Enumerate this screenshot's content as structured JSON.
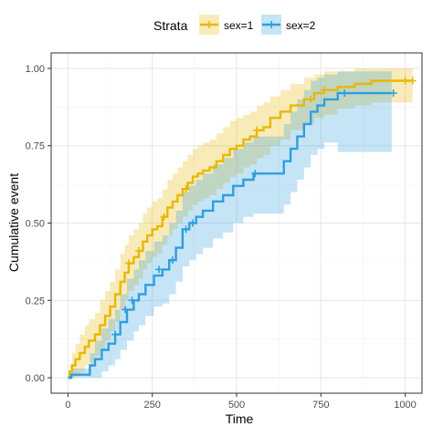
{
  "chart_data": {
    "type": "line",
    "subtype": "step",
    "xlabel": "Time",
    "ylabel": "Cumulative event",
    "xlim": [
      -50,
      1050
    ],
    "ylim": [
      -0.05,
      1.05
    ],
    "xticks": [
      0,
      250,
      500,
      750,
      1000
    ],
    "xtick_labels": [
      "0",
      "250",
      "500",
      "750",
      "1000"
    ],
    "yticks": [
      0,
      0.25,
      0.5,
      0.75,
      1
    ],
    "ytick_labels": [
      "0.00",
      "0.25",
      "0.50",
      "0.75",
      "1.00"
    ],
    "grid": true,
    "legend": {
      "title": "Strata",
      "position": "top",
      "entries": [
        "sex=1",
        "sex=2"
      ]
    },
    "series": [
      {
        "name": "sex=1",
        "color": "#E7B800",
        "x": [
          0,
          5,
          12,
          22,
          35,
          50,
          62,
          80,
          95,
          110,
          125,
          140,
          155,
          168,
          180,
          195,
          210,
          222,
          235,
          250,
          265,
          280,
          295,
          310,
          325,
          340,
          355,
          370,
          385,
          400,
          420,
          440,
          460,
          480,
          500,
          520,
          540,
          560,
          580,
          600,
          630,
          660,
          700,
          730,
          760,
          800,
          850,
          900,
          960,
          1000,
          1022
        ],
        "y": [
          0,
          0.02,
          0.04,
          0.06,
          0.08,
          0.1,
          0.12,
          0.14,
          0.17,
          0.2,
          0.23,
          0.27,
          0.31,
          0.34,
          0.37,
          0.39,
          0.41,
          0.44,
          0.46,
          0.48,
          0.49,
          0.52,
          0.55,
          0.57,
          0.59,
          0.61,
          0.63,
          0.65,
          0.66,
          0.67,
          0.68,
          0.7,
          0.72,
          0.74,
          0.75,
          0.77,
          0.78,
          0.8,
          0.81,
          0.84,
          0.86,
          0.88,
          0.9,
          0.92,
          0.93,
          0.94,
          0.95,
          0.96,
          0.96,
          0.96,
          0.96
        ],
        "lower": [
          0,
          0,
          0,
          0.01,
          0.02,
          0.04,
          0.05,
          0.07,
          0.09,
          0.12,
          0.15,
          0.18,
          0.22,
          0.25,
          0.28,
          0.3,
          0.32,
          0.35,
          0.37,
          0.39,
          0.4,
          0.43,
          0.46,
          0.48,
          0.5,
          0.52,
          0.54,
          0.56,
          0.57,
          0.58,
          0.59,
          0.61,
          0.63,
          0.65,
          0.66,
          0.68,
          0.69,
          0.71,
          0.72,
          0.75,
          0.77,
          0.8,
          0.82,
          0.84,
          0.85,
          0.87,
          0.88,
          0.89,
          0.89,
          0.89,
          0.89
        ],
        "upper": [
          0,
          0.04,
          0.08,
          0.11,
          0.14,
          0.17,
          0.19,
          0.21,
          0.25,
          0.28,
          0.31,
          0.35,
          0.4,
          0.43,
          0.46,
          0.48,
          0.5,
          0.53,
          0.55,
          0.57,
          0.58,
          0.61,
          0.64,
          0.66,
          0.68,
          0.7,
          0.72,
          0.74,
          0.75,
          0.76,
          0.77,
          0.79,
          0.81,
          0.83,
          0.84,
          0.85,
          0.86,
          0.88,
          0.89,
          0.91,
          0.93,
          0.95,
          0.97,
          0.98,
          0.99,
          0.99,
          1.0,
          1.0,
          1.0,
          1.0,
          1.0
        ],
        "censor_x": [
          180,
          210,
          285,
          350,
          560,
          720,
          760,
          1000,
          1022
        ],
        "censor_y": [
          0.37,
          0.41,
          0.52,
          0.61,
          0.8,
          0.9,
          0.93,
          0.96,
          0.96
        ]
      },
      {
        "name": "sex=2",
        "color": "#2E9FDF",
        "x": [
          0,
          10,
          65,
          80,
          100,
          120,
          140,
          155,
          175,
          195,
          210,
          230,
          255,
          280,
          300,
          320,
          340,
          360,
          380,
          400,
          430,
          460,
          490,
          520,
          550,
          580,
          620,
          640,
          660,
          680,
          700,
          720,
          740,
          760,
          800,
          850,
          900,
          960
        ],
        "y": [
          0,
          0.01,
          0.04,
          0.06,
          0.09,
          0.11,
          0.14,
          0.18,
          0.22,
          0.25,
          0.27,
          0.3,
          0.33,
          0.35,
          0.38,
          0.42,
          0.48,
          0.5,
          0.52,
          0.54,
          0.57,
          0.59,
          0.62,
          0.64,
          0.66,
          0.66,
          0.66,
          0.7,
          0.74,
          0.78,
          0.82,
          0.86,
          0.88,
          0.9,
          0.92,
          0.92,
          0.92,
          0.92
        ],
        "lower": [
          0,
          0,
          0,
          0,
          0.02,
          0.04,
          0.06,
          0.09,
          0.12,
          0.15,
          0.17,
          0.2,
          0.23,
          0.24,
          0.27,
          0.31,
          0.36,
          0.38,
          0.4,
          0.42,
          0.45,
          0.47,
          0.5,
          0.52,
          0.53,
          0.53,
          0.53,
          0.56,
          0.6,
          0.64,
          0.68,
          0.72,
          0.74,
          0.76,
          0.73,
          0.73,
          0.73,
          0.73
        ],
        "upper": [
          0,
          0.03,
          0.08,
          0.12,
          0.16,
          0.19,
          0.22,
          0.27,
          0.32,
          0.35,
          0.38,
          0.41,
          0.44,
          0.46,
          0.5,
          0.54,
          0.6,
          0.62,
          0.64,
          0.66,
          0.69,
          0.71,
          0.74,
          0.76,
          0.78,
          0.78,
          0.78,
          0.82,
          0.86,
          0.9,
          0.93,
          0.96,
          0.97,
          0.98,
          0.99,
          0.99,
          0.99,
          0.99
        ],
        "censor_x": [
          140,
          170,
          190,
          270,
          310,
          350,
          370,
          555,
          820,
          965
        ],
        "censor_y": [
          0.14,
          0.22,
          0.25,
          0.35,
          0.38,
          0.48,
          0.5,
          0.66,
          0.92,
          0.92
        ]
      }
    ]
  }
}
